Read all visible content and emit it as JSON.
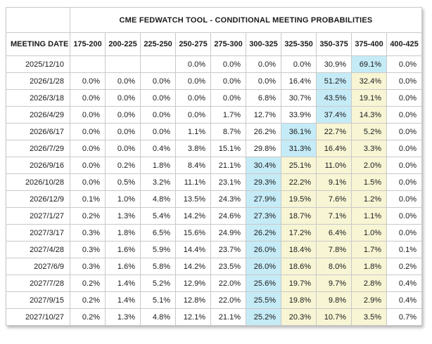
{
  "table": {
    "title": "CME FEDWATCH TOOL - CONDITIONAL MEETING PROBABILITIES",
    "meeting_date_label": "MEETING DATE",
    "rate_ranges": [
      "175-200",
      "200-225",
      "225-250",
      "250-275",
      "275-300",
      "300-325",
      "325-350",
      "350-375",
      "375-400",
      "400-425"
    ],
    "colors": {
      "highlight_blue": "#c5ebf7",
      "highlight_yellow": "#f7f5d4",
      "grid_border": "#c9c9c9"
    },
    "rows": [
      {
        "date": "2025/12/10",
        "values": [
          "",
          "",
          "",
          "0.0%",
          "0.0%",
          "0.0%",
          "0.0%",
          "30.9%",
          "69.1%",
          "0.0%"
        ],
        "blue": 8,
        "yellow": []
      },
      {
        "date": "2026/1/28",
        "values": [
          "0.0%",
          "0.0%",
          "0.0%",
          "0.0%",
          "0.0%",
          "0.0%",
          "16.4%",
          "51.2%",
          "32.4%",
          "0.0%"
        ],
        "blue": 7,
        "yellow": [
          8
        ]
      },
      {
        "date": "2026/3/18",
        "values": [
          "0.0%",
          "0.0%",
          "0.0%",
          "0.0%",
          "0.0%",
          "6.8%",
          "30.7%",
          "43.5%",
          "19.1%",
          "0.0%"
        ],
        "blue": 7,
        "yellow": [
          8
        ]
      },
      {
        "date": "2026/4/29",
        "values": [
          "0.0%",
          "0.0%",
          "0.0%",
          "0.0%",
          "1.7%",
          "12.7%",
          "33.9%",
          "37.4%",
          "14.3%",
          "0.0%"
        ],
        "blue": 7,
        "yellow": [
          8
        ]
      },
      {
        "date": "2026/6/17",
        "values": [
          "0.0%",
          "0.0%",
          "0.0%",
          "1.1%",
          "8.7%",
          "26.2%",
          "36.1%",
          "22.7%",
          "5.2%",
          "0.0%"
        ],
        "blue": 6,
        "yellow": [
          7,
          8
        ]
      },
      {
        "date": "2026/7/29",
        "values": [
          "0.0%",
          "0.0%",
          "0.4%",
          "3.8%",
          "15.1%",
          "29.8%",
          "31.3%",
          "16.4%",
          "3.3%",
          "0.0%"
        ],
        "blue": 6,
        "yellow": [
          7,
          8
        ]
      },
      {
        "date": "2026/9/16",
        "values": [
          "0.0%",
          "0.2%",
          "1.8%",
          "8.4%",
          "21.1%",
          "30.4%",
          "25.1%",
          "11.0%",
          "2.0%",
          "0.0%"
        ],
        "blue": 5,
        "yellow": [
          6,
          7,
          8
        ]
      },
      {
        "date": "2026/10/28",
        "values": [
          "0.0%",
          "0.5%",
          "3.2%",
          "11.1%",
          "23.1%",
          "29.3%",
          "22.2%",
          "9.1%",
          "1.5%",
          "0.0%"
        ],
        "blue": 5,
        "yellow": [
          6,
          7,
          8
        ]
      },
      {
        "date": "2026/12/9",
        "values": [
          "0.1%",
          "1.0%",
          "4.8%",
          "13.5%",
          "24.3%",
          "27.9%",
          "19.5%",
          "7.6%",
          "1.2%",
          "0.0%"
        ],
        "blue": 5,
        "yellow": [
          6,
          7,
          8
        ]
      },
      {
        "date": "2027/1/27",
        "values": [
          "0.2%",
          "1.3%",
          "5.4%",
          "14.2%",
          "24.6%",
          "27.3%",
          "18.7%",
          "7.1%",
          "1.1%",
          "0.0%"
        ],
        "blue": 5,
        "yellow": [
          6,
          7,
          8
        ]
      },
      {
        "date": "2027/3/17",
        "values": [
          "0.3%",
          "1.8%",
          "6.5%",
          "15.6%",
          "24.9%",
          "26.2%",
          "17.2%",
          "6.4%",
          "1.0%",
          "0.0%"
        ],
        "blue": 5,
        "yellow": [
          6,
          7,
          8
        ]
      },
      {
        "date": "2027/4/28",
        "values": [
          "0.3%",
          "1.6%",
          "5.9%",
          "14.4%",
          "23.7%",
          "26.0%",
          "18.4%",
          "7.8%",
          "1.7%",
          "0.1%"
        ],
        "blue": 5,
        "yellow": [
          6,
          7,
          8
        ]
      },
      {
        "date": "2027/6/9",
        "values": [
          "0.3%",
          "1.6%",
          "5.8%",
          "14.2%",
          "23.5%",
          "26.0%",
          "18.6%",
          "8.0%",
          "1.8%",
          "0.2%"
        ],
        "blue": 5,
        "yellow": [
          6,
          7,
          8
        ]
      },
      {
        "date": "2027/7/28",
        "values": [
          "0.2%",
          "1.4%",
          "5.2%",
          "12.9%",
          "22.0%",
          "25.6%",
          "19.7%",
          "9.7%",
          "2.8%",
          "0.4%"
        ],
        "blue": 5,
        "yellow": [
          6,
          7,
          8
        ]
      },
      {
        "date": "2027/9/15",
        "values": [
          "0.2%",
          "1.4%",
          "5.1%",
          "12.8%",
          "22.0%",
          "25.5%",
          "19.8%",
          "9.8%",
          "2.9%",
          "0.4%"
        ],
        "blue": 5,
        "yellow": [
          6,
          7,
          8
        ]
      },
      {
        "date": "2027/10/27",
        "values": [
          "0.2%",
          "1.3%",
          "4.8%",
          "12.1%",
          "21.1%",
          "25.2%",
          "20.3%",
          "10.7%",
          "3.5%",
          "0.7%"
        ],
        "blue": 5,
        "yellow": [
          6,
          7,
          8
        ]
      }
    ]
  }
}
